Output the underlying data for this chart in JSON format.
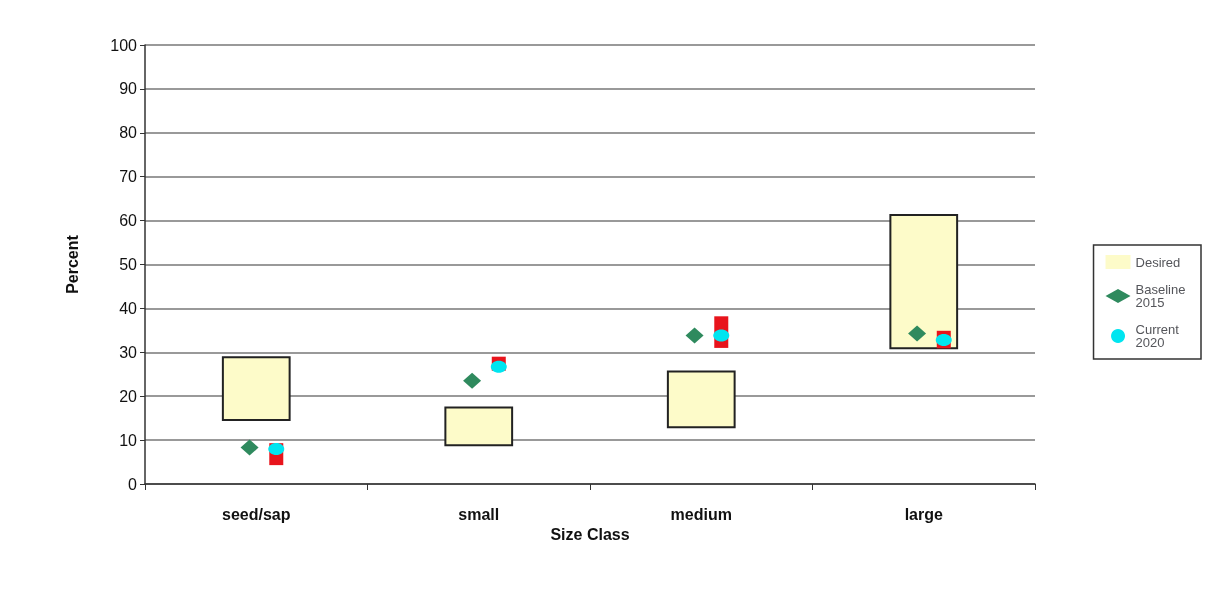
{
  "chart_data": {
    "type": "bar",
    "xlabel": "Size Class",
    "ylabel": "Percent",
    "categories": [
      "seed/sap",
      "small",
      "medium",
      "large"
    ],
    "series": [
      {
        "name": "Desired",
        "color": "#fdfbc9",
        "base": [
          14.6,
          8.8,
          12.9,
          30.9
        ],
        "values": [
          14.3,
          8.6,
          12.7,
          30.4
        ]
      },
      {
        "name": "Baseline 2015",
        "type": "scatter",
        "marker": "diamond",
        "color": "#2f8a5e",
        "values": [
          8.3,
          23.5,
          33.8,
          34.3
        ]
      },
      {
        "name": "Current 2020",
        "type": "scatter",
        "marker": "circle",
        "color": "#00e5f0",
        "values": [
          8.0,
          26.7,
          33.8,
          32.8
        ],
        "errors": [
          [
            4.3,
            9.3
          ],
          [
            25.8,
            29.0
          ],
          [
            31.0,
            38.2
          ],
          [
            30.9,
            34.9
          ]
        ]
      }
    ],
    "ylim": [
      0,
      100
    ],
    "yticks": [
      0,
      10,
      20,
      30,
      40,
      50,
      60,
      70,
      80,
      90,
      100
    ],
    "grid": "y",
    "legend": "right"
  }
}
